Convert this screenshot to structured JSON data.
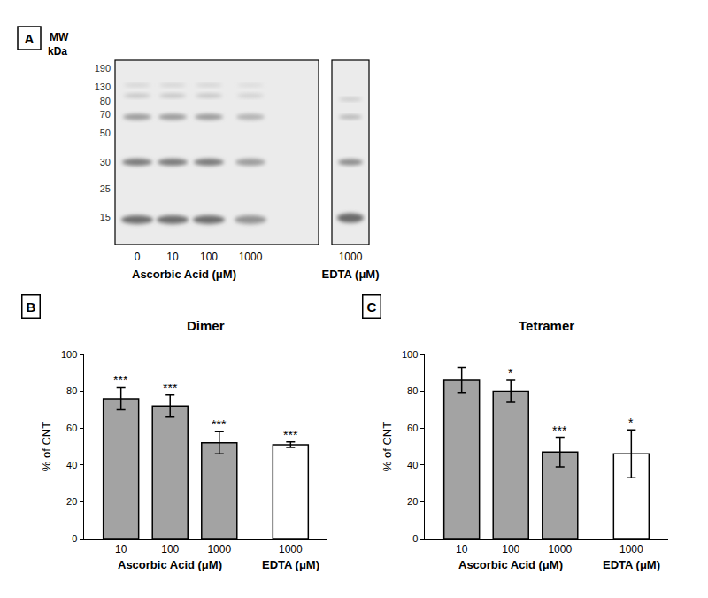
{
  "blot": {
    "label": "A",
    "mw_title": [
      "MW",
      "kDa"
    ],
    "mw_markers": [
      190,
      130,
      80,
      70,
      50,
      30,
      25,
      15
    ],
    "lanes": [
      "0",
      "10",
      "100",
      "1000"
    ],
    "lanes_label": "Ascorbic Acid (μM)",
    "side_lanes": [
      "1000"
    ],
    "side_label": "EDTA (μM)"
  },
  "chart_data": [
    {
      "type": "bar",
      "panel": "B",
      "title": "Dimer",
      "y_label": "% of CNT",
      "categories": [
        "10",
        "100",
        "1000",
        "1000"
      ],
      "values": [
        76,
        72,
        52,
        51
      ],
      "errors": [
        6,
        6,
        6,
        1.5
      ],
      "significance": [
        "***",
        "***",
        "***",
        "***"
      ],
      "colors": [
        "#a3a3a3",
        "#a3a3a3",
        "#a3a3a3",
        "#ffffff"
      ],
      "annotations": [
        "Ascorbic Acid (μM)",
        "EDTA (μM)"
      ],
      "ylim": [
        0,
        100
      ],
      "yticks": [
        0,
        20,
        40,
        60,
        80,
        100
      ],
      "grid": false
    },
    {
      "type": "bar",
      "panel": "C",
      "title": "Tetramer",
      "y_label": "% of CNT",
      "categories": [
        "10",
        "100",
        "1000",
        "1000"
      ],
      "values": [
        86,
        80,
        47,
        46
      ],
      "errors": [
        7,
        6,
        8,
        13
      ],
      "significance": [
        null,
        "*",
        "***",
        "*"
      ],
      "colors": [
        "#a3a3a3",
        "#a3a3a3",
        "#a3a3a3",
        "#ffffff"
      ],
      "annotations": [
        "Ascorbic Acid (μM)",
        "EDTA (μM)"
      ],
      "ylim": [
        0,
        100
      ],
      "yticks": [
        0,
        20,
        40,
        60,
        80,
        100
      ],
      "grid": false
    }
  ]
}
